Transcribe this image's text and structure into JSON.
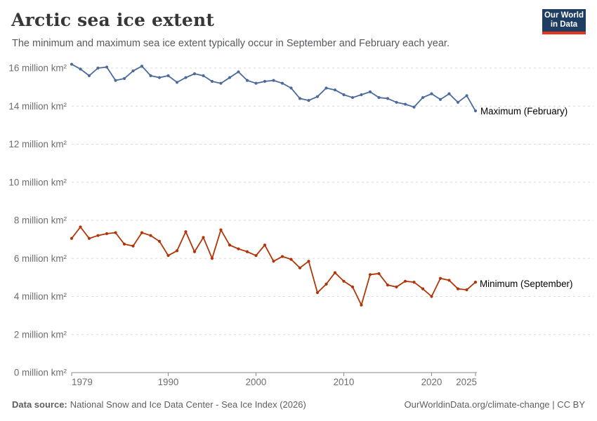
{
  "header": {
    "title": "Arctic sea ice extent",
    "subtitle": "The minimum and maximum sea ice extent typically occur in September and February each year."
  },
  "logo": {
    "line1": "Our World",
    "line2": "in Data",
    "bg_color": "#1d3d63",
    "stripe_color": "#e5361d"
  },
  "footer": {
    "source_label": "Data source:",
    "source_text": "National Snow and Ice Data Center - Sea Ice Index (2026)",
    "right_text": "OurWorldinData.org/climate-change | CC BY"
  },
  "chart_data": {
    "type": "line",
    "x": [
      1979,
      1980,
      1981,
      1982,
      1983,
      1984,
      1985,
      1986,
      1987,
      1988,
      1989,
      1990,
      1991,
      1992,
      1993,
      1994,
      1995,
      1996,
      1997,
      1998,
      1999,
      2000,
      2001,
      2002,
      2003,
      2004,
      2005,
      2006,
      2007,
      2008,
      2009,
      2010,
      2011,
      2012,
      2013,
      2014,
      2015,
      2016,
      2017,
      2018,
      2019,
      2020,
      2021,
      2022,
      2023,
      2024,
      2025
    ],
    "series": [
      {
        "name": "Maximum (February)",
        "color": "#4c6a9c",
        "values": [
          16.2,
          15.95,
          15.6,
          16.0,
          16.05,
          15.35,
          15.45,
          15.85,
          16.1,
          15.6,
          15.5,
          15.6,
          15.25,
          15.5,
          15.7,
          15.6,
          15.3,
          15.2,
          15.5,
          15.8,
          15.35,
          15.2,
          15.3,
          15.35,
          15.2,
          14.95,
          14.4,
          14.3,
          14.5,
          14.95,
          14.85,
          14.6,
          14.45,
          14.6,
          14.75,
          14.45,
          14.4,
          14.2,
          14.1,
          13.95,
          14.45,
          14.65,
          14.35,
          14.65,
          14.2,
          14.55,
          13.75
        ]
      },
      {
        "name": "Minimum (September)",
        "color": "#b13507",
        "values": [
          7.05,
          7.65,
          7.05,
          7.2,
          7.3,
          7.35,
          6.75,
          6.65,
          7.35,
          7.2,
          6.9,
          6.15,
          6.4,
          7.4,
          6.35,
          7.1,
          6.0,
          7.5,
          6.7,
          6.5,
          6.35,
          6.15,
          6.7,
          5.85,
          6.1,
          5.95,
          5.5,
          5.85,
          4.2,
          4.65,
          5.25,
          4.8,
          4.5,
          3.55,
          5.15,
          5.2,
          4.6,
          4.5,
          4.8,
          4.75,
          4.4,
          4.0,
          4.95,
          4.85,
          4.4,
          4.35,
          4.75
        ]
      }
    ],
    "title": "Arctic sea ice extent",
    "xlabel": "",
    "ylabel": "",
    "unit": "million km²",
    "xlim": [
      1979,
      2025
    ],
    "ylim": [
      0,
      16
    ],
    "x_ticks": [
      1979,
      1990,
      2000,
      2010,
      2020,
      2025
    ],
    "y_ticks": [
      {
        "value": 0,
        "label": "0 million km²"
      },
      {
        "value": 2,
        "label": "2 million km²"
      },
      {
        "value": 4,
        "label": "4 million km²"
      },
      {
        "value": 6,
        "label": "6 million km²"
      },
      {
        "value": 8,
        "label": "8 million km²"
      },
      {
        "value": 10,
        "label": "10 million km²"
      },
      {
        "value": 12,
        "label": "12 million km²"
      },
      {
        "value": 14,
        "label": "14 million km²"
      },
      {
        "value": 16,
        "label": "16 million km²"
      }
    ],
    "grid": "horizontal-dashed",
    "legend_position": "end-of-line",
    "tick_color": "#6d6d6d",
    "grid_color": "#dadada",
    "axis_color": "#8a8a8a"
  }
}
